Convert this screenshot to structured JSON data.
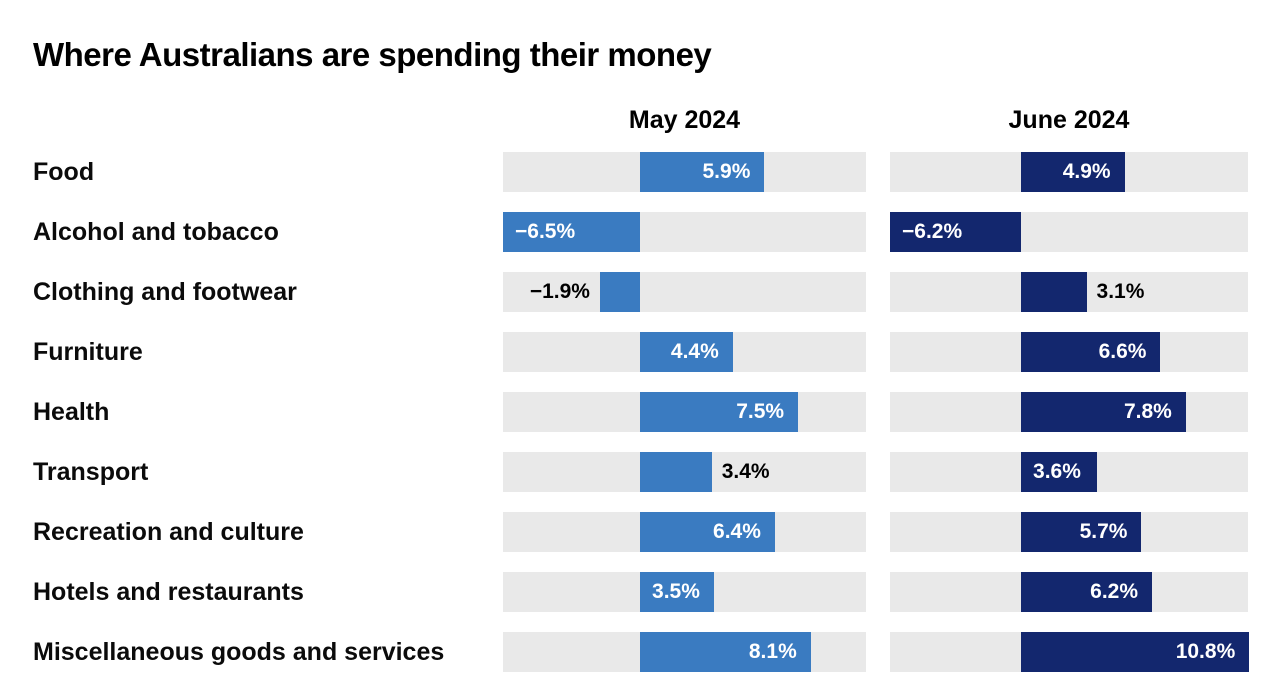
{
  "title": "Where Australians are spending their money",
  "chart_data": {
    "type": "bar",
    "orientation": "horizontal",
    "grid": false,
    "legend_position": "column-headers",
    "track_color": "#e9e9e9",
    "value_label_color_inside": "#ffffff",
    "value_label_color_outside": "#000000",
    "categories": [
      "Food",
      "Alcohol and tobacco",
      "Clothing and footwear",
      "Furniture",
      "Health",
      "Transport",
      "Recreation and culture",
      "Hotels and restaurants",
      "Miscellaneous goods and services"
    ],
    "series": [
      {
        "name": "May 2024",
        "color": "#3a7bc1",
        "values": [
          5.9,
          -6.5,
          -1.9,
          4.4,
          7.5,
          3.4,
          6.4,
          3.5,
          8.1
        ],
        "labels": [
          "5.9%",
          "−6.5%",
          "−1.9%",
          "4.4%",
          "7.5%",
          "3.4%",
          "6.4%",
          "3.5%",
          "8.1%"
        ],
        "label_pos": [
          "in-right",
          "in-left",
          "out-left",
          "in-right",
          "in-right",
          "out-right",
          "in-right",
          "in-left",
          "in-right"
        ],
        "axis": {
          "min": -6.5,
          "max": 10.72
        }
      },
      {
        "name": "June 2024",
        "color": "#13276e",
        "values": [
          4.9,
          -6.2,
          3.1,
          6.6,
          7.8,
          3.6,
          5.7,
          6.2,
          10.8
        ],
        "labels": [
          "4.9%",
          "−6.2%",
          "3.1%",
          "6.6%",
          "7.8%",
          "3.6%",
          "5.7%",
          "6.2%",
          "10.8%"
        ],
        "label_pos": [
          "in-right",
          "in-left",
          "out-right",
          "in-right",
          "in-right",
          "in-left",
          "in-right",
          "in-right",
          "in-right"
        ],
        "axis": {
          "min": -6.2,
          "max": 10.74
        }
      }
    ]
  }
}
